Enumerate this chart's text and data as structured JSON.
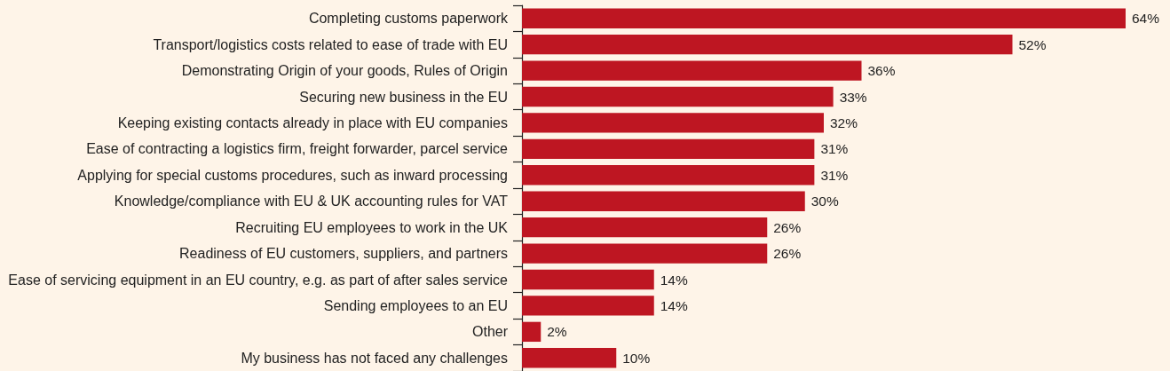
{
  "chart_data": {
    "type": "bar",
    "orientation": "horizontal",
    "tick_labels": "y",
    "categories": [
      "Completing customs paperwork",
      "Transport/logistics costs related to ease of trade with EU",
      "Demonstrating Origin of your goods, Rules of Origin",
      "Securing new business in the EU",
      "Keeping existing contacts already in place with EU companies",
      "Ease of contracting a logistics firm, freight forwarder, parcel service",
      "Applying for special customs procedures, such as inward processing",
      "Knowledge/compliance with EU & UK accounting rules for VAT",
      "Recruiting EU employees to work in the UK",
      "Readiness of EU customers, suppliers, and partners",
      "Ease of servicing equipment in an EU country, e.g. as part of after sales service",
      "Sending employees to an EU",
      "Other",
      "My business has not faced any challenges"
    ],
    "values": [
      64,
      52,
      36,
      33,
      32,
      31,
      31,
      30,
      26,
      26,
      14,
      14,
      2,
      10
    ],
    "color": "#be1622",
    "value_labels": [
      "64%",
      "52%",
      "36%",
      "33%",
      "32%",
      "31%",
      "31%",
      "30%",
      "26%",
      "26%",
      "14%",
      "14%",
      "2%",
      "10%"
    ]
  }
}
